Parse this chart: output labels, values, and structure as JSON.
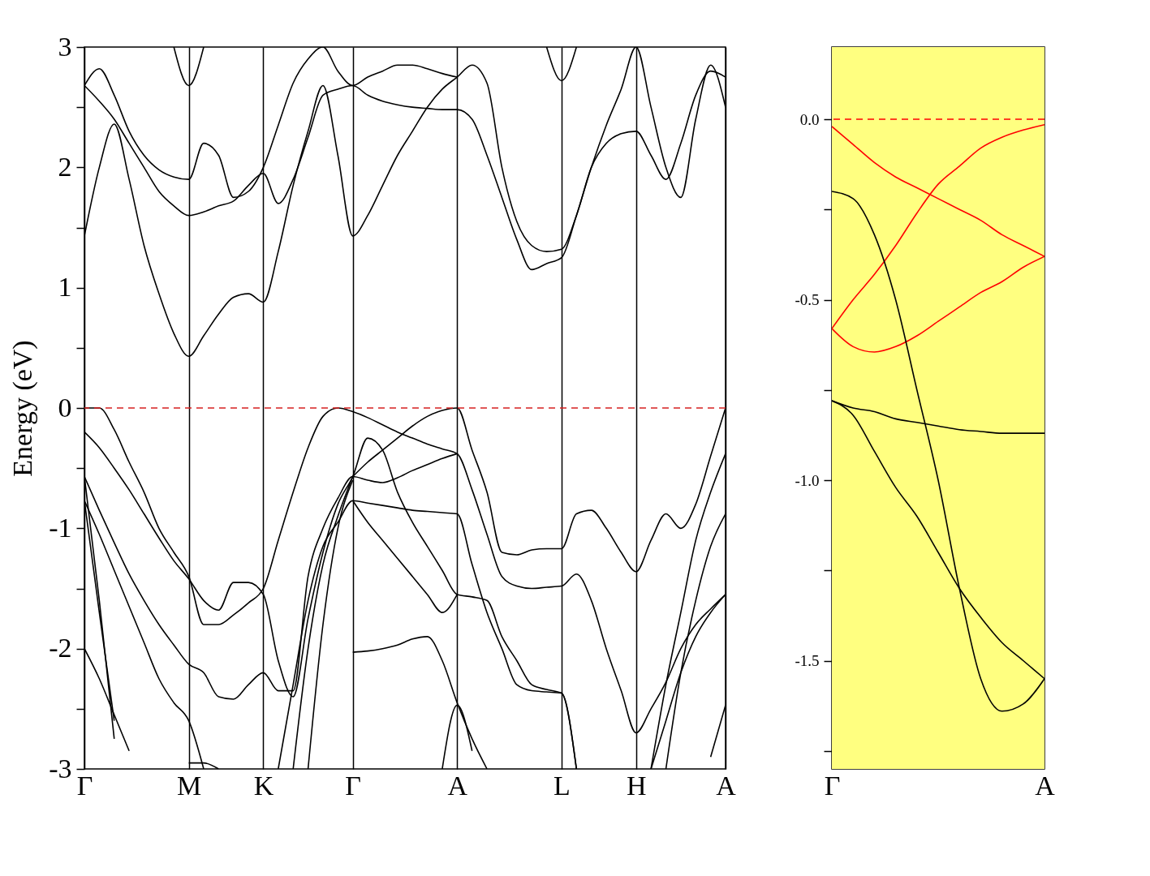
{
  "chart_data": [
    {
      "type": "line",
      "ylabel": "Energy (eV)",
      "categories": [
        "Γ",
        null,
        null,
        null,
        null,
        null,
        null,
        "M",
        null,
        null,
        null,
        null,
        "K",
        null,
        null,
        null,
        null,
        null,
        "Γ",
        null,
        null,
        null,
        null,
        null,
        null,
        "A",
        null,
        null,
        null,
        null,
        null,
        null,
        "L",
        null,
        null,
        null,
        null,
        "H",
        null,
        null,
        null,
        null,
        null,
        "A"
      ],
      "grid": "x",
      "ylim": [
        -3,
        3
      ],
      "yticks": [
        -3,
        {
          "value": -2.5,
          "label": null
        },
        -2,
        {
          "value": -1.5,
          "label": null
        },
        -1,
        {
          "value": -0.5,
          "label": null
        },
        0,
        {
          "value": 0.5,
          "label": null
        },
        1,
        {
          "value": 1.5,
          "label": null
        },
        2,
        {
          "value": 2.5,
          "label": null
        },
        3
      ],
      "ref_lines": [
        {
          "axis": "y",
          "value": 0,
          "color": "#d62020",
          "line_style": "dashed"
        }
      ],
      "series": [
        {
          "color": "#000000",
          "values": [
            0,
            0,
            -0.18,
            -0.45,
            -0.7,
            -1.0,
            -1.2,
            -1.4,
            -1.8,
            -1.8,
            -1.72,
            -1.62,
            -1.5,
            -1.1,
            -0.7,
            -0.33,
            -0.07,
            0,
            -0.03,
            -0.08,
            -0.14,
            -0.2,
            -0.25,
            -0.3,
            -0.34,
            -0.38,
            -0.68,
            -1.05,
            -1.4,
            -1.48,
            -1.5,
            -1.49,
            -1.48,
            -1.38,
            -1.6,
            -2.0,
            -2.35,
            -2.7,
            -2.5,
            -2.28,
            -2.0,
            -1.8,
            -1.67,
            -1.55
          ]
        },
        {
          "color": "#000000",
          "values": [
            -0.2,
            -0.33,
            -0.5,
            -0.68,
            -0.88,
            -1.08,
            -1.27,
            -1.42,
            -1.6,
            -1.68,
            -1.45,
            -1.45,
            -1.55,
            -2.1,
            -2.4,
            -1.75,
            -1.2,
            -0.8,
            -0.57,
            -0.25,
            -0.35,
            -0.7,
            -0.95,
            -1.15,
            -1.35,
            -1.55,
            -1.57,
            -1.6,
            -1.9,
            -2.1,
            -2.3,
            -2.34,
            -2.37,
            -3,
            null,
            null,
            null,
            null,
            null,
            null,
            null,
            null,
            null,
            null
          ]
        },
        {
          "color": "#000000",
          "values": [
            -0.57,
            -0.85,
            -1.12,
            -1.38,
            -1.6,
            -1.8,
            -1.97,
            -2.13,
            -2.2,
            -2.4,
            -2.42,
            -2.3,
            -2.2,
            -2.35,
            -2.35,
            -1.4,
            -1.0,
            -0.75,
            -0.57,
            -0.6,
            -0.62,
            -0.58,
            -0.52,
            -0.47,
            -0.42,
            -0.38,
            null,
            null,
            null,
            null,
            null,
            null,
            null,
            null,
            null,
            null,
            null,
            null,
            null,
            null,
            null,
            null,
            null,
            null
          ]
        },
        {
          "color": "#000000",
          "values": [
            null,
            null,
            null,
            null,
            null,
            null,
            null,
            null,
            null,
            null,
            null,
            null,
            null,
            null,
            null,
            null,
            null,
            null,
            -0.57,
            -0.45,
            -0.35,
            -0.25,
            -0.15,
            -0.07,
            -0.02,
            0,
            -0.35,
            -0.7,
            -1.2,
            -1.22,
            -1.18,
            -1.17,
            -1.17,
            -0.88,
            -0.85,
            -1.0,
            -1.2,
            -1.36,
            -1.1,
            -0.88,
            -1.0,
            -0.8,
            -0.4,
            0
          ]
        },
        {
          "color": "#000000",
          "values": [
            -0.77,
            -1.05,
            -1.35,
            -1.65,
            -1.95,
            -2.25,
            -2.45,
            -2.6,
            -3,
            null,
            null,
            null,
            null,
            null,
            null,
            null,
            null,
            null,
            null,
            null,
            null,
            null,
            null,
            null,
            null,
            null,
            null,
            null,
            null,
            null,
            null,
            null,
            null,
            null,
            null,
            null,
            null,
            null,
            null,
            null,
            null,
            null,
            null,
            null
          ]
        },
        {
          "color": "#000000",
          "values": [
            null,
            null,
            null,
            null,
            null,
            null,
            null,
            null,
            null,
            null,
            null,
            null,
            null,
            -3,
            -2.3,
            -1.6,
            -1.15,
            -0.95,
            -0.77,
            -0.79,
            -0.81,
            -0.83,
            -0.85,
            -0.86,
            -0.87,
            -0.88,
            -1.3,
            -1.7,
            -2.0,
            -2.3,
            -2.35,
            -2.36,
            -2.37,
            -3,
            null,
            null,
            null,
            null,
            null,
            null,
            null,
            null,
            null,
            null
          ]
        },
        {
          "color": "#000000",
          "values": [
            -0.57,
            -1.6,
            -2.75,
            null,
            null,
            null,
            null,
            null,
            null,
            null,
            null,
            null,
            null,
            null,
            null,
            null,
            null,
            null,
            null,
            null,
            null,
            null,
            null,
            null,
            null,
            null,
            null,
            null,
            null,
            null,
            null,
            null,
            null,
            null,
            null,
            null,
            null,
            null,
            null,
            null,
            null,
            null,
            null,
            null
          ]
        },
        {
          "color": "#000000",
          "values": [
            -0.77,
            -1.7,
            -2.6,
            null,
            null,
            null,
            null,
            null,
            null,
            null,
            null,
            null,
            null,
            null,
            null,
            null,
            null,
            null,
            null,
            null,
            null,
            null,
            null,
            null,
            null,
            null,
            null,
            null,
            null,
            null,
            null,
            null,
            null,
            null,
            null,
            null,
            null,
            null,
            null,
            null,
            null,
            null,
            null,
            null
          ]
        },
        {
          "color": "#000000",
          "values": [
            -2.0,
            -2.25,
            -2.55,
            -2.85,
            null,
            null,
            null,
            null,
            null,
            null,
            null,
            null,
            null,
            null,
            null,
            null,
            null,
            null,
            null,
            null,
            null,
            null,
            null,
            null,
            null,
            null,
            null,
            null,
            null,
            null,
            null,
            null,
            null,
            null,
            null,
            null,
            null,
            null,
            null,
            null,
            null,
            null,
            null,
            null
          ]
        },
        {
          "color": "#000000",
          "values": [
            null,
            null,
            null,
            null,
            null,
            null,
            null,
            null,
            null,
            null,
            null,
            null,
            null,
            null,
            null,
            null,
            null,
            null,
            -0.77,
            -0.95,
            -1.1,
            -1.25,
            -1.4,
            -1.55,
            -1.7,
            -1.55,
            null,
            null,
            null,
            null,
            null,
            null,
            null,
            null,
            null,
            null,
            null,
            null,
            null,
            null,
            null,
            null,
            null,
            null
          ]
        },
        {
          "color": "#000000",
          "values": [
            null,
            null,
            null,
            null,
            null,
            null,
            null,
            null,
            null,
            null,
            null,
            null,
            null,
            null,
            null,
            null,
            null,
            null,
            -2.03,
            -2.02,
            -2.0,
            -1.97,
            -1.92,
            -1.9,
            -2.1,
            -2.45,
            -2.75,
            -3,
            null,
            null,
            null,
            null,
            null,
            null,
            null,
            null,
            null,
            null,
            null,
            null,
            null,
            null,
            null,
            null
          ]
        },
        {
          "color": "#000000",
          "values": [
            null,
            null,
            null,
            null,
            null,
            null,
            null,
            null,
            null,
            null,
            null,
            null,
            null,
            null,
            null,
            null,
            null,
            null,
            null,
            null,
            null,
            null,
            null,
            null,
            -3,
            -2.47,
            -2.85,
            null,
            null,
            null,
            null,
            null,
            null,
            null,
            null,
            null,
            null,
            null,
            null,
            null,
            null,
            null,
            null,
            null
          ]
        },
        {
          "color": "#000000",
          "values": [
            null,
            null,
            null,
            null,
            null,
            null,
            null,
            null,
            null,
            null,
            null,
            null,
            null,
            null,
            -3,
            -2.0,
            -1.3,
            -0.9,
            -0.57,
            null,
            null,
            null,
            null,
            null,
            null,
            null,
            null,
            null,
            null,
            null,
            null,
            null,
            null,
            null,
            null,
            null,
            null,
            null,
            null,
            null,
            null,
            null,
            null,
            null
          ]
        },
        {
          "color": "#000000",
          "values": [
            null,
            null,
            null,
            null,
            null,
            null,
            null,
            null,
            null,
            null,
            null,
            null,
            null,
            null,
            null,
            -3,
            -1.8,
            -1.0,
            -0.6,
            null,
            null,
            null,
            null,
            null,
            null,
            null,
            null,
            null,
            null,
            null,
            null,
            null,
            null,
            null,
            null,
            null,
            null,
            null,
            null,
            null,
            null,
            null,
            null,
            null
          ]
        },
        {
          "color": "#000000",
          "values": [
            null,
            null,
            null,
            null,
            null,
            null,
            null,
            -2.95,
            -2.95,
            -3,
            null,
            null,
            null,
            null,
            null,
            null,
            null,
            null,
            null,
            null,
            null,
            null,
            null,
            null,
            null,
            null,
            null,
            null,
            null,
            null,
            null,
            null,
            null,
            null,
            null,
            null,
            null,
            null,
            null,
            null,
            null,
            null,
            null,
            null
          ]
        },
        {
          "color": "#000000",
          "values": [
            null,
            null,
            null,
            null,
            null,
            null,
            null,
            null,
            null,
            null,
            null,
            null,
            null,
            null,
            null,
            null,
            null,
            null,
            null,
            null,
            null,
            null,
            null,
            null,
            null,
            null,
            null,
            null,
            null,
            null,
            null,
            null,
            null,
            null,
            null,
            null,
            null,
            null,
            -3,
            -2.6,
            -2.2,
            -1.9,
            -1.7,
            -1.55
          ]
        },
        {
          "color": "#000000",
          "values": [
            null,
            null,
            null,
            null,
            null,
            null,
            null,
            null,
            null,
            null,
            null,
            null,
            null,
            null,
            null,
            null,
            null,
            null,
            null,
            null,
            null,
            null,
            null,
            null,
            null,
            null,
            null,
            null,
            null,
            null,
            null,
            null,
            null,
            null,
            null,
            null,
            null,
            null,
            -3,
            -2.3,
            -1.7,
            -1.1,
            -0.7,
            -0.38
          ]
        },
        {
          "color": "#000000",
          "values": [
            null,
            null,
            null,
            null,
            null,
            null,
            null,
            null,
            null,
            null,
            null,
            null,
            null,
            null,
            null,
            null,
            null,
            null,
            null,
            null,
            null,
            null,
            null,
            null,
            null,
            null,
            null,
            null,
            null,
            null,
            null,
            null,
            null,
            null,
            null,
            null,
            null,
            null,
            null,
            -3,
            -2.2,
            -1.6,
            -1.15,
            -0.88
          ]
        },
        {
          "color": "#000000",
          "values": [
            null,
            null,
            null,
            null,
            null,
            null,
            null,
            null,
            null,
            null,
            null,
            null,
            null,
            null,
            null,
            null,
            null,
            null,
            null,
            null,
            null,
            null,
            null,
            null,
            null,
            null,
            null,
            null,
            null,
            null,
            null,
            null,
            null,
            null,
            null,
            null,
            null,
            null,
            null,
            null,
            null,
            null,
            -2.9,
            -2.47
          ]
        },
        {
          "color": "#000000",
          "values": [
            1.43,
            2.0,
            2.36,
            1.9,
            1.35,
            0.95,
            0.62,
            0.43,
            0.6,
            0.78,
            0.92,
            0.95,
            0.88,
            1.3,
            1.85,
            2.3,
            2.68,
            2.1,
            1.43,
            1.6,
            1.85,
            2.1,
            2.3,
            2.5,
            2.65,
            2.75,
            2.85,
            2.7,
            2.0,
            1.55,
            1.35,
            1.3,
            1.32,
            1.6,
            2.0,
            2.2,
            2.28,
            2.3,
            2.1,
            1.9,
            2.2,
            2.6,
            2.8,
            2.75
          ]
        },
        {
          "color": "#000000",
          "values": [
            2.68,
            2.82,
            2.6,
            2.3,
            2.1,
            1.98,
            1.92,
            1.9,
            2.2,
            2.1,
            1.75,
            1.8,
            2.0,
            2.35,
            2.7,
            2.9,
            3.0,
            2.8,
            2.68,
            2.75,
            2.8,
            2.85,
            2.85,
            2.82,
            2.78,
            2.75,
            null,
            null,
            null,
            null,
            null,
            null,
            null,
            null,
            null,
            null,
            null,
            null,
            null,
            null,
            null,
            null,
            null,
            null
          ]
        },
        {
          "color": "#000000",
          "values": [
            2.68,
            2.55,
            2.4,
            2.2,
            2.0,
            1.8,
            1.68,
            1.6,
            1.63,
            1.68,
            1.72,
            1.85,
            1.95,
            1.7,
            1.9,
            2.25,
            2.6,
            2.65,
            2.68,
            2.6,
            2.55,
            2.52,
            2.5,
            2.49,
            2.48,
            2.48,
            2.4,
            2.1,
            1.75,
            1.4,
            1.15,
            1.2,
            1.25,
            1.6,
            2.0,
            2.35,
            2.65,
            3.0,
            2.5,
            2.0,
            1.75,
            2.4,
            2.85,
            2.5
          ]
        },
        {
          "color": "#000000",
          "values": [
            null,
            null,
            null,
            null,
            null,
            null,
            3.0,
            2.68,
            3.0,
            null,
            null,
            null,
            null,
            null,
            null,
            null,
            null,
            null,
            null,
            null,
            null,
            null,
            null,
            null,
            null,
            null,
            null,
            null,
            null,
            null,
            null,
            null,
            null,
            null,
            null,
            null,
            null,
            null,
            null,
            null,
            null,
            null,
            null,
            null
          ]
        },
        {
          "color": "#000000",
          "values": [
            null,
            null,
            null,
            null,
            null,
            null,
            null,
            null,
            null,
            null,
            null,
            null,
            null,
            null,
            null,
            null,
            null,
            null,
            null,
            null,
            null,
            null,
            null,
            null,
            null,
            null,
            null,
            null,
            null,
            null,
            null,
            3.0,
            2.72,
            3.0,
            null,
            null,
            null,
            null,
            null,
            null,
            null,
            null,
            null,
            null
          ]
        }
      ]
    },
    {
      "type": "line",
      "categories": [
        "Γ",
        null,
        null,
        null,
        null,
        null,
        null,
        null,
        null,
        null,
        "A"
      ],
      "ylim": [
        -1.8,
        0.2
      ],
      "yticks": [
        {
          "value": -1.75,
          "label": null
        },
        -1.5,
        {
          "value": -1.25,
          "label": null
        },
        {
          "value": -1,
          "label": "-1.0"
        },
        {
          "value": -0.75,
          "label": null
        },
        -0.5,
        {
          "value": -0.25,
          "label": null
        },
        {
          "value": 0,
          "label": "0.0"
        }
      ],
      "bands": [
        {
          "axis": "y",
          "from": -1.8,
          "to": 0.2,
          "color": "#ffff80"
        }
      ],
      "ref_lines": [
        {
          "axis": "y",
          "value": 0,
          "color": "#ff0000",
          "line_style": "dashed"
        }
      ],
      "series": [
        {
          "color": "#ff0000",
          "values": [
            -0.02,
            -0.07,
            -0.12,
            -0.16,
            -0.19,
            -0.22,
            -0.25,
            -0.28,
            -0.32,
            -0.35,
            -0.38
          ]
        },
        {
          "color": "#ff0000",
          "values": [
            -0.58,
            -0.5,
            -0.43,
            -0.35,
            -0.26,
            -0.18,
            -0.13,
            -0.08,
            -0.05,
            -0.03,
            -0.015
          ]
        },
        {
          "color": "#ff0000",
          "values": [
            -0.58,
            -0.63,
            -0.645,
            -0.63,
            -0.6,
            -0.56,
            -0.52,
            -0.48,
            -0.45,
            -0.41,
            -0.38
          ]
        },
        {
          "color": "#000000",
          "values": [
            -0.2,
            -0.22,
            -0.32,
            -0.5,
            -0.75,
            -1.0,
            -1.3,
            -1.55,
            -1.64,
            -1.62,
            -1.55
          ]
        },
        {
          "color": "#000000",
          "values": [
            -0.78,
            -0.8,
            -0.81,
            -0.83,
            -0.84,
            -0.85,
            -0.86,
            -0.865,
            -0.87,
            -0.87,
            -0.87
          ]
        },
        {
          "color": "#000000",
          "values": [
            -0.78,
            -0.82,
            -0.92,
            -1.02,
            -1.1,
            -1.2,
            -1.3,
            -1.38,
            -1.45,
            -1.5,
            -1.55
          ]
        }
      ]
    }
  ]
}
